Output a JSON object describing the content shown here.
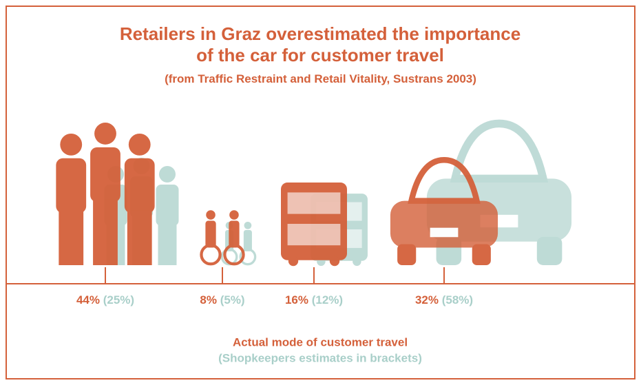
{
  "chart_data": {
    "type": "pictogram",
    "title": "Retailers in Graz overestimated the importance of the car for customer travel",
    "subtitle": "(from Traffic Restraint and Retail Vitality, Sustrans 2003)",
    "series": [
      {
        "name": "Actual mode of customer travel",
        "color": "#d4603a",
        "values": [
          44,
          8,
          16,
          32
        ],
        "value_labels": [
          "44%",
          "8%",
          "16%",
          "32%"
        ]
      },
      {
        "name": "(Shopkeepers estimates in brackets)",
        "color": "#a9cfc9",
        "values": [
          25,
          5,
          12,
          58
        ],
        "value_labels": [
          "(25%)",
          "(5%)",
          "(12%)",
          "(58%)"
        ]
      }
    ]
  }
}
